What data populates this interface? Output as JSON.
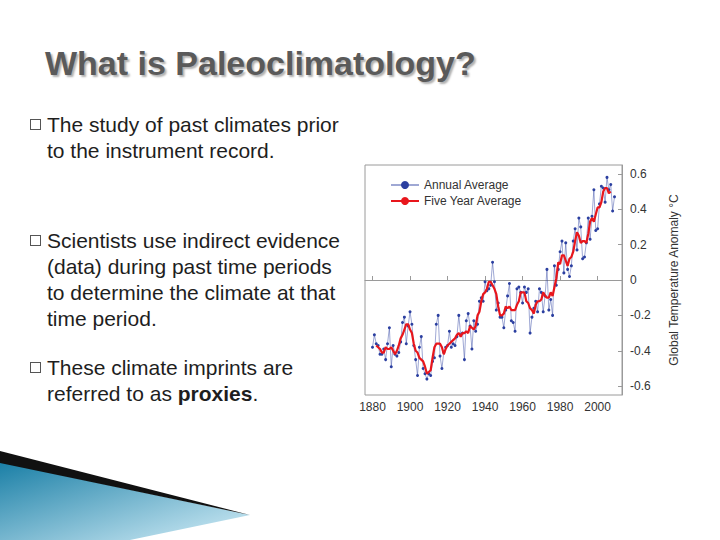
{
  "slide": {
    "title": "What is Paleoclimatology?",
    "bullets": [
      [
        {
          "text": "The study of past climates prior to the instrument record."
        }
      ],
      [
        {
          "text": "Scientists use indirect evidence (data) during past time periods to determine the climate at that time period."
        }
      ],
      [
        {
          "text": "These climate imprints are referred to as "
        },
        {
          "text": "proxies",
          "bold": true
        },
        {
          "text": "."
        }
      ]
    ]
  },
  "chart_data": {
    "type": "line",
    "ylabel": "Global Temperature Anomaly °C",
    "x": [
      1880,
      1881,
      1882,
      1883,
      1884,
      1885,
      1886,
      1887,
      1888,
      1889,
      1890,
      1891,
      1892,
      1893,
      1894,
      1895,
      1896,
      1897,
      1898,
      1899,
      1900,
      1901,
      1902,
      1903,
      1904,
      1905,
      1906,
      1907,
      1908,
      1909,
      1910,
      1911,
      1912,
      1913,
      1914,
      1915,
      1916,
      1917,
      1918,
      1919,
      1920,
      1921,
      1922,
      1923,
      1924,
      1925,
      1926,
      1927,
      1928,
      1929,
      1930,
      1931,
      1932,
      1933,
      1934,
      1935,
      1936,
      1937,
      1938,
      1939,
      1940,
      1941,
      1942,
      1943,
      1944,
      1945,
      1946,
      1947,
      1948,
      1949,
      1950,
      1951,
      1952,
      1953,
      1954,
      1955,
      1956,
      1957,
      1958,
      1959,
      1960,
      1961,
      1962,
      1963,
      1964,
      1965,
      1966,
      1967,
      1968,
      1969,
      1970,
      1971,
      1972,
      1973,
      1974,
      1975,
      1976,
      1977,
      1978,
      1979,
      1980,
      1981,
      1982,
      1983,
      1984,
      1985,
      1986,
      1987,
      1988,
      1989,
      1990,
      1991,
      1992,
      1993,
      1994,
      1995,
      1996,
      1997,
      1998,
      1999,
      2000,
      2001,
      2002,
      2003,
      2004,
      2005,
      2006,
      2007,
      2008,
      2009
    ],
    "series": [
      {
        "name": "Annual Average",
        "color": "#2b3fa0",
        "marker": "circle",
        "line_style": "solid",
        "values": [
          -0.38,
          -0.31,
          -0.36,
          -0.37,
          -0.42,
          -0.42,
          -0.39,
          -0.45,
          -0.36,
          -0.27,
          -0.49,
          -0.37,
          -0.42,
          -0.43,
          -0.41,
          -0.35,
          -0.24,
          -0.21,
          -0.36,
          -0.26,
          -0.18,
          -0.25,
          -0.37,
          -0.45,
          -0.54,
          -0.38,
          -0.32,
          -0.5,
          -0.53,
          -0.56,
          -0.53,
          -0.54,
          -0.46,
          -0.44,
          -0.25,
          -0.2,
          -0.43,
          -0.5,
          -0.41,
          -0.38,
          -0.37,
          -0.29,
          -0.38,
          -0.36,
          -0.37,
          -0.32,
          -0.2,
          -0.31,
          -0.3,
          -0.45,
          -0.23,
          -0.19,
          -0.26,
          -0.39,
          -0.23,
          -0.29,
          -0.25,
          -0.12,
          -0.1,
          -0.12,
          -0.01,
          -0.06,
          -0.05,
          -0.03,
          0.1,
          -0.01,
          -0.17,
          -0.13,
          -0.21,
          -0.21,
          -0.27,
          -0.17,
          -0.09,
          -0.02,
          -0.23,
          -0.24,
          -0.29,
          -0.05,
          -0.04,
          -0.07,
          -0.13,
          -0.04,
          -0.07,
          -0.05,
          -0.3,
          -0.21,
          -0.16,
          -0.12,
          -0.18,
          -0.05,
          -0.07,
          -0.18,
          -0.09,
          0.06,
          -0.17,
          -0.11,
          -0.2,
          0.08,
          -0.03,
          0.06,
          0.16,
          0.22,
          0.04,
          0.21,
          0.06,
          0.02,
          0.08,
          0.22,
          0.29,
          0.17,
          0.35,
          0.3,
          0.12,
          0.13,
          0.21,
          0.35,
          0.23,
          0.36,
          0.51,
          0.28,
          0.29,
          0.43,
          0.53,
          0.52,
          0.44,
          0.58,
          0.51,
          0.54,
          0.39,
          0.47
        ]
      },
      {
        "name": "Five Year Average",
        "color": "#e8161c",
        "marker": "none",
        "line_style": "solid",
        "values": [
          null,
          null,
          -0.37,
          -0.38,
          -0.39,
          -0.41,
          -0.41,
          -0.38,
          -0.39,
          -0.39,
          -0.38,
          -0.4,
          -0.42,
          -0.4,
          -0.37,
          -0.33,
          -0.31,
          -0.28,
          -0.25,
          -0.25,
          -0.28,
          -0.3,
          -0.36,
          -0.4,
          -0.41,
          -0.44,
          -0.45,
          -0.46,
          -0.49,
          -0.53,
          -0.52,
          -0.51,
          -0.44,
          -0.38,
          -0.36,
          -0.36,
          -0.36,
          -0.38,
          -0.42,
          -0.39,
          -0.37,
          -0.36,
          -0.35,
          -0.34,
          -0.33,
          -0.31,
          -0.3,
          -0.32,
          -0.3,
          -0.3,
          -0.29,
          -0.3,
          -0.26,
          -0.27,
          -0.28,
          -0.26,
          -0.2,
          -0.18,
          -0.12,
          -0.08,
          -0.07,
          -0.05,
          -0.01,
          -0.01,
          -0.03,
          -0.05,
          -0.08,
          -0.15,
          -0.2,
          -0.2,
          -0.19,
          -0.15,
          -0.16,
          -0.15,
          -0.17,
          -0.17,
          -0.17,
          -0.14,
          -0.12,
          -0.07,
          -0.07,
          -0.07,
          -0.12,
          -0.13,
          -0.16,
          -0.17,
          -0.19,
          -0.14,
          -0.12,
          -0.12,
          -0.11,
          -0.07,
          -0.09,
          -0.1,
          -0.1,
          -0.07,
          -0.09,
          -0.04,
          0.01,
          0.1,
          0.09,
          0.14,
          0.14,
          0.11,
          0.08,
          0.12,
          0.13,
          0.16,
          0.22,
          0.27,
          0.25,
          0.21,
          0.22,
          0.22,
          0.21,
          0.26,
          0.33,
          0.35,
          0.33,
          0.37,
          0.41,
          0.41,
          0.44,
          0.5,
          0.52,
          0.52,
          0.49,
          0.5,
          null,
          null
        ]
      }
    ],
    "xlim": [
      1876,
      2013
    ],
    "xticks": [
      1880,
      1900,
      1920,
      1940,
      1960,
      1980,
      2000
    ],
    "ylim": [
      -0.65,
      0.65
    ],
    "yticks": [
      -0.6,
      -0.4,
      -0.2,
      0,
      0.2,
      0.4,
      0.6
    ],
    "grid": false,
    "legend": "upper left"
  }
}
